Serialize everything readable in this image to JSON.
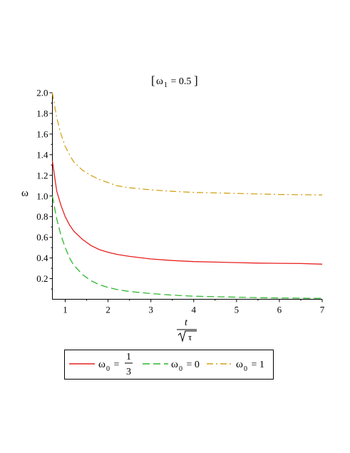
{
  "chart_data": {
    "type": "line",
    "title": {
      "symbol": "ω",
      "subscript": "1",
      "rest": " = 0.5"
    },
    "ylabel": "ω",
    "xlabel": {
      "numerator": "t",
      "denominator": "τ"
    },
    "xlim": [
      0.7,
      7.0
    ],
    "ylim": [
      0.0,
      2.0
    ],
    "xticks": [
      1,
      2,
      3,
      4,
      5,
      6,
      7
    ],
    "xtick_labels": [
      "1",
      "2",
      "3",
      "4",
      "5",
      "6",
      "7"
    ],
    "yticks": [
      0.2,
      0.4,
      0.6,
      0.8,
      1.0,
      1.2,
      1.4,
      1.6,
      1.8,
      2.0
    ],
    "ytick_labels": [
      "0.2",
      "0.4",
      "0.6",
      "0.8",
      "1.0",
      "1.2",
      "1.4",
      "1.6",
      "1.8",
      "2.0"
    ],
    "grid": false,
    "legend_position": "bottom",
    "series": [
      {
        "legend": {
          "symbol": "ω",
          "subscript": "0",
          "eq": " = ",
          "frac_num": "1",
          "frac_den": "3"
        },
        "color": "#e8201f",
        "dash": "solid",
        "x": [
          0.7,
          0.8,
          0.9,
          1.0,
          1.1,
          1.2,
          1.4,
          1.6,
          1.8,
          2.0,
          2.2,
          2.5,
          3.0,
          3.5,
          4.0,
          4.5,
          5.0,
          5.5,
          6.0,
          6.5,
          7.0
        ],
        "y": [
          1.34,
          1.05,
          0.91,
          0.8,
          0.72,
          0.66,
          0.58,
          0.52,
          0.48,
          0.455,
          0.435,
          0.415,
          0.39,
          0.375,
          0.365,
          0.36,
          0.355,
          0.35,
          0.348,
          0.346,
          0.34
        ]
      },
      {
        "legend": {
          "symbol": "ω",
          "subscript": "0",
          "eq": " = 0"
        },
        "color": "#2db82d",
        "dash": "dashed",
        "x": [
          0.7,
          0.8,
          0.9,
          1.0,
          1.1,
          1.2,
          1.4,
          1.6,
          1.8,
          2.0,
          2.2,
          2.5,
          3.0,
          3.5,
          4.0,
          4.5,
          5.0,
          5.5,
          6.0,
          6.5,
          7.0
        ],
        "y": [
          1.0,
          0.78,
          0.62,
          0.5,
          0.4,
          0.33,
          0.24,
          0.18,
          0.14,
          0.115,
          0.095,
          0.075,
          0.055,
          0.04,
          0.03,
          0.025,
          0.02,
          0.015,
          0.013,
          0.011,
          0.01
        ]
      },
      {
        "legend": {
          "symbol": "ω",
          "subscript": "0",
          "eq": " = 1"
        },
        "color": "#d4a21a",
        "dash": "dashdot",
        "x": [
          0.7,
          0.8,
          0.9,
          1.0,
          1.1,
          1.2,
          1.4,
          1.6,
          1.8,
          2.0,
          2.2,
          2.5,
          3.0,
          3.5,
          4.0,
          4.5,
          5.0,
          5.5,
          6.0,
          6.5,
          7.0
        ],
        "y": [
          2.0,
          1.76,
          1.6,
          1.48,
          1.4,
          1.33,
          1.25,
          1.2,
          1.16,
          1.13,
          1.1,
          1.08,
          1.06,
          1.045,
          1.035,
          1.03,
          1.025,
          1.02,
          1.015,
          1.013,
          1.01
        ]
      }
    ]
  }
}
